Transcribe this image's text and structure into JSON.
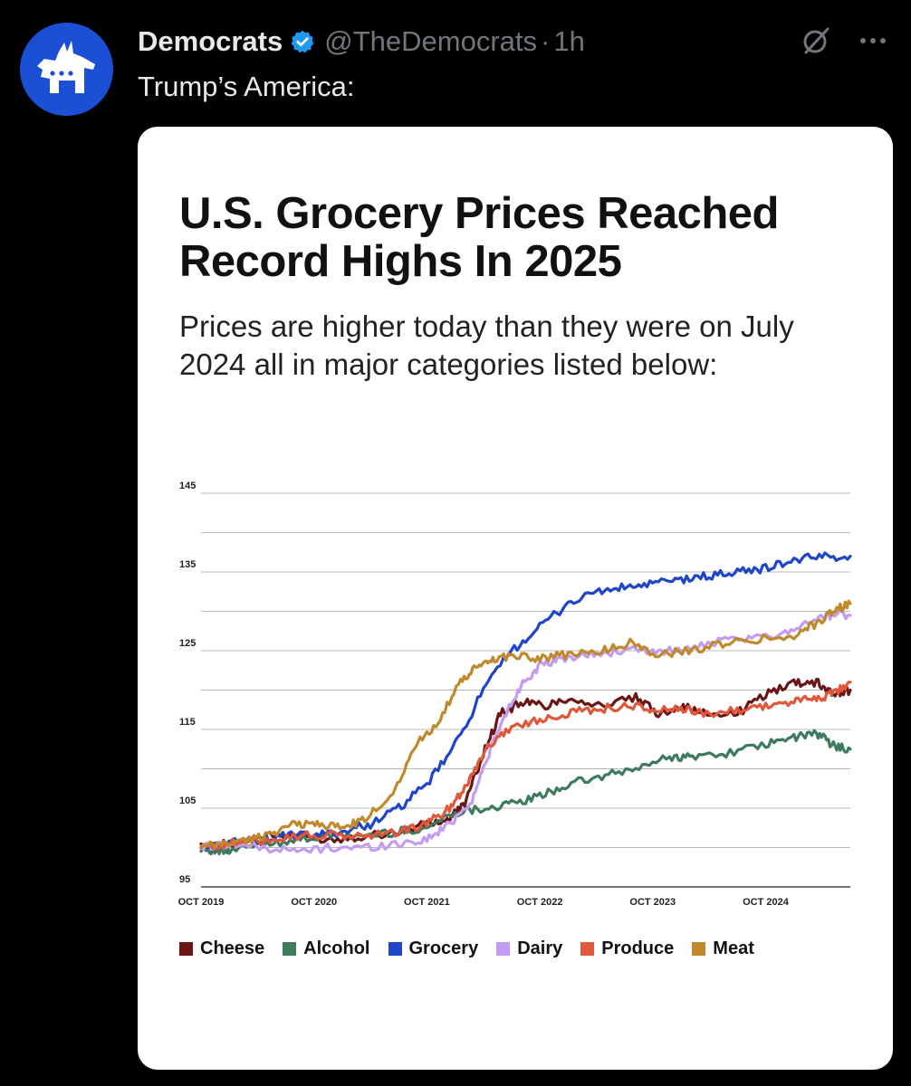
{
  "post": {
    "display_name": "Democrats",
    "handle": "@TheDemocrats",
    "separator": "·",
    "time": "1h",
    "text": "Trump’s America:",
    "icons": {
      "avatar": "democrat-donkey-logo",
      "verified": "verified-badge-icon",
      "grok": "grok-icon",
      "more": "more-icon"
    },
    "colors": {
      "avatar_bg": "#1a4fd6",
      "verified": "#1d9bf0"
    }
  },
  "card": {
    "title": "U.S. Grocery Prices Reached Record Highs In 2025",
    "subtitle": "Prices are higher today than they were on July 2024 all in major categories listed below:"
  },
  "chart_data": {
    "type": "line",
    "title": "U.S. Grocery Prices Reached Record Highs In 2025",
    "xlabel": "",
    "ylabel": "",
    "ylim": [
      95,
      145
    ],
    "xlim": [
      2019.75,
      2025.5
    ],
    "y_ticks": [
      95,
      100,
      105,
      110,
      115,
      120,
      125,
      130,
      135,
      140,
      145
    ],
    "y_tick_labels": [
      "95",
      "105",
      "115",
      "125",
      "135",
      "145"
    ],
    "x_ticks": [
      2019.75,
      2020.75,
      2021.75,
      2022.75,
      2023.75,
      2024.75
    ],
    "x_tick_labels": [
      "OCT 2019",
      "OCT 2020",
      "OCT 2021",
      "OCT 2022",
      "OCT 2023",
      "OCT 2024"
    ],
    "grid": true,
    "legend_position": "bottom",
    "series": [
      {
        "name": "Cheese",
        "color": "#6b1616",
        "x": [
          2019.75,
          2020.0,
          2020.3,
          2020.6,
          2020.9,
          2021.2,
          2021.5,
          2021.75,
          2021.95,
          2022.1,
          2022.25,
          2022.4,
          2022.6,
          2022.8,
          2023.0,
          2023.3,
          2023.6,
          2023.8,
          2024.0,
          2024.2,
          2024.5,
          2024.75,
          2025.0,
          2025.2,
          2025.35,
          2025.5
        ],
        "values": [
          100,
          100.5,
          101.5,
          101.5,
          101.0,
          101.5,
          102,
          103,
          103.5,
          106,
          112,
          117,
          118.5,
          118,
          119,
          118,
          119,
          117,
          118,
          117,
          117,
          119.5,
          121,
          121,
          119.5,
          120
        ]
      },
      {
        "name": "Alcohol",
        "color": "#3d7a5e",
        "x": [
          2019.75,
          2019.9,
          2020.0,
          2020.3,
          2020.6,
          2020.9,
          2021.2,
          2021.5,
          2021.75,
          2022.0,
          2022.25,
          2022.5,
          2022.75,
          2023.0,
          2023.3,
          2023.6,
          2023.9,
          2024.1,
          2024.4,
          2024.75,
          2025.0,
          2025.2,
          2025.35,
          2025.5
        ],
        "values": [
          100,
          99.5,
          99.5,
          100.5,
          101,
          101.5,
          101.5,
          102,
          102.5,
          104.5,
          105,
          105.5,
          106.5,
          108,
          109,
          110,
          111.5,
          111.5,
          112,
          113,
          114,
          114.5,
          113,
          112.5
        ]
      },
      {
        "name": "Grocery",
        "color": "#1f45c8",
        "x": [
          2019.75,
          2020.0,
          2020.25,
          2020.5,
          2020.75,
          2021.0,
          2021.25,
          2021.5,
          2021.75,
          2022.0,
          2022.25,
          2022.5,
          2022.75,
          2023.0,
          2023.25,
          2023.5,
          2023.75,
          2024.0,
          2024.25,
          2024.5,
          2024.75,
          2025.0,
          2025.25,
          2025.5
        ],
        "values": [
          100,
          100.5,
          101,
          101.5,
          101.5,
          102,
          103,
          105,
          108,
          113,
          120,
          125,
          128,
          131,
          132.5,
          133,
          133.5,
          134,
          134.5,
          135,
          135.5,
          136.5,
          137,
          137
        ]
      },
      {
        "name": "Dairy",
        "color": "#c39bf2",
        "x": [
          2019.75,
          2020.0,
          2020.3,
          2020.6,
          2020.9,
          2021.2,
          2021.5,
          2021.75,
          2021.95,
          2022.15,
          2022.3,
          2022.45,
          2022.6,
          2022.75,
          2022.95,
          2023.2,
          2023.5,
          2023.75,
          2024.0,
          2024.3,
          2024.6,
          2024.85,
          2025.1,
          2025.3,
          2025.5
        ],
        "values": [
          100,
          100.5,
          100,
          99.5,
          100,
          100,
          100.5,
          101,
          103,
          106,
          112,
          117,
          121,
          123,
          124,
          124.5,
          125,
          125,
          125,
          126,
          126.5,
          127,
          128.5,
          129.5,
          129.5
        ]
      },
      {
        "name": "Produce",
        "color": "#e0573a",
        "x": [
          2019.75,
          2020.0,
          2020.3,
          2020.6,
          2020.9,
          2021.2,
          2021.5,
          2021.75,
          2021.95,
          2022.1,
          2022.25,
          2022.45,
          2022.7,
          2022.95,
          2023.2,
          2023.5,
          2023.75,
          2024.0,
          2024.2,
          2024.5,
          2024.75,
          2025.0,
          2025.2,
          2025.35,
          2025.5
        ],
        "values": [
          100,
          100.5,
          101,
          101.5,
          101.5,
          101.5,
          102,
          103,
          105,
          108,
          112,
          115,
          116,
          117,
          117.5,
          118,
          117.5,
          117.5,
          117,
          117.5,
          118,
          118.5,
          119,
          119.5,
          121
        ]
      },
      {
        "name": "Meat",
        "color": "#c08a2c",
        "x": [
          2019.75,
          2019.95,
          2020.2,
          2020.4,
          2020.6,
          2020.8,
          2021.0,
          2021.2,
          2021.45,
          2021.65,
          2021.85,
          2022.05,
          2022.2,
          2022.35,
          2022.55,
          2022.75,
          2023.0,
          2023.3,
          2023.55,
          2023.8,
          2024.1,
          2024.4,
          2024.7,
          2025.0,
          2025.2,
          2025.35,
          2025.5
        ],
        "values": [
          100,
          100.5,
          101,
          102,
          103,
          103,
          102.5,
          103.5,
          107,
          113,
          116,
          121,
          123,
          124,
          124.5,
          124,
          124.5,
          125,
          126,
          124.5,
          125,
          126,
          126.5,
          127,
          128.5,
          130,
          131
        ]
      }
    ]
  }
}
